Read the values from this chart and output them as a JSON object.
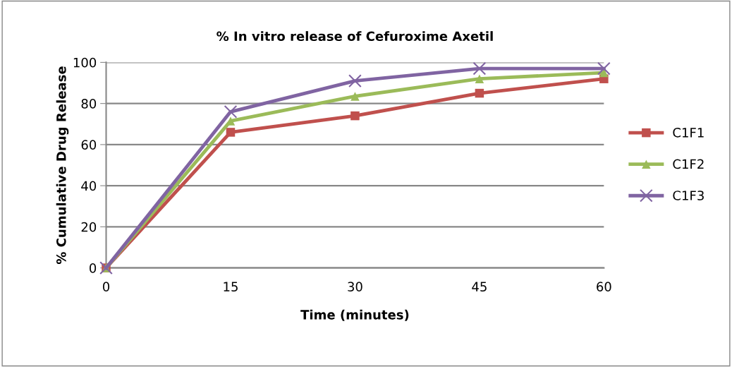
{
  "chart_data": {
    "type": "line",
    "title": "% In vitro release of Cefuroxime Axetil",
    "xlabel": "Time (minutes)",
    "ylabel": "% Cumulative Drug Release",
    "categories": [
      "0",
      "15",
      "30",
      "45",
      "60"
    ],
    "series": [
      {
        "name": "C1F1",
        "color": "#c0504d",
        "marker": "square",
        "values": [
          0,
          66,
          74,
          85,
          92
        ]
      },
      {
        "name": "C1F2",
        "color": "#9bbb59",
        "marker": "triangle",
        "values": [
          0,
          71.5,
          83.5,
          92,
          95
        ]
      },
      {
        "name": "C1F3",
        "color": "#8064a2",
        "marker": "cross",
        "values": [
          0,
          76,
          91,
          97,
          97
        ]
      }
    ],
    "ylim": [
      0,
      100
    ],
    "yticks": [
      0,
      20,
      40,
      60,
      80,
      100
    ],
    "grid": "y",
    "legend": "right",
    "line_style": "solid"
  }
}
